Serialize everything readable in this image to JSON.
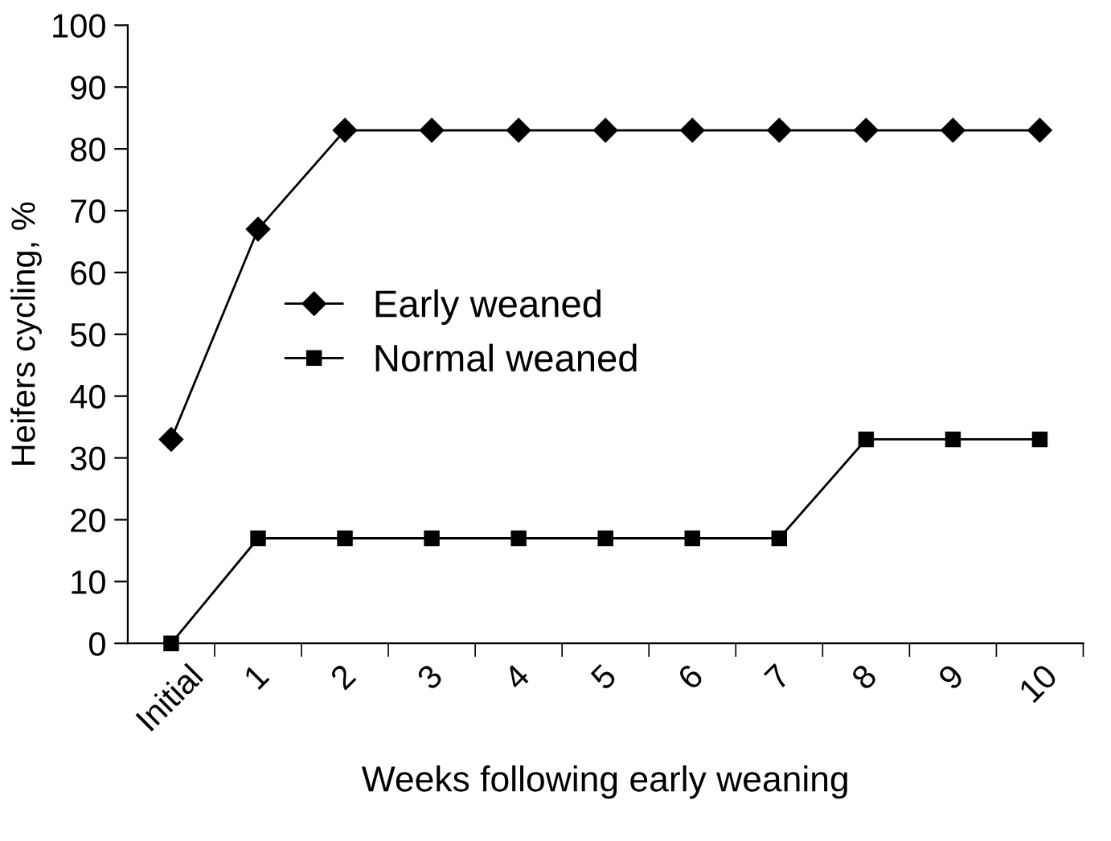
{
  "chart_data": {
    "type": "line",
    "xlabel": "Weeks following early weaning",
    "ylabel": "Heifers cycling, %",
    "categories": [
      "Initial",
      "1",
      "2",
      "3",
      "4",
      "5",
      "6",
      "7",
      "8",
      "9",
      "10"
    ],
    "series": [
      {
        "name": "Early weaned",
        "color": "#000000",
        "marker": "diamond",
        "values": [
          33,
          67,
          83,
          83,
          83,
          83,
          83,
          83,
          83,
          83,
          83
        ]
      },
      {
        "name": "Normal weaned",
        "color": "#000000",
        "marker": "square",
        "values": [
          0,
          17,
          17,
          17,
          17,
          17,
          17,
          17,
          33,
          33,
          33
        ]
      }
    ],
    "ylim": [
      0,
      100
    ],
    "yticks": [
      0,
      10,
      20,
      30,
      40,
      50,
      60,
      70,
      80,
      90,
      100
    ],
    "grid": false,
    "legend": "center",
    "line_style": "solid"
  }
}
